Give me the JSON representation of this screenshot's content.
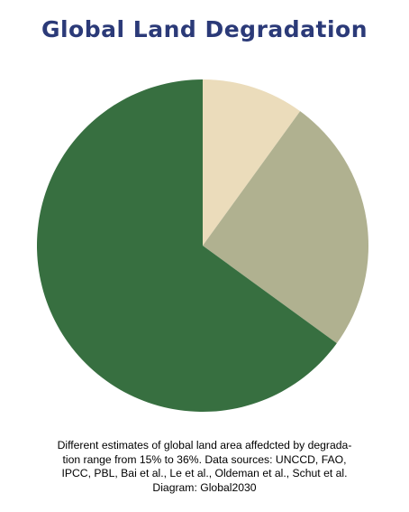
{
  "colors": {
    "title": "#2b3a78",
    "slices": [
      "#ebdcbb",
      "#b0b190",
      "#376f40"
    ]
  },
  "chart_data": {
    "type": "pie",
    "title": "Global Land Degradation",
    "slices": [
      {
        "label": "",
        "value": 10
      },
      {
        "label": "",
        "value": 25
      },
      {
        "label": "",
        "value": 65
      }
    ],
    "legend": "none"
  },
  "caption": {
    "lines": [
      "Different estimates of global land area affedcted by degrada-",
      "tion range from 15% to 36%. Data sources: UNCCD, FAO,",
      "IPCC, PBL, Bai et al., Le et al., Oldeman et al., Schut et al.",
      "Diagram: Global2030"
    ]
  }
}
